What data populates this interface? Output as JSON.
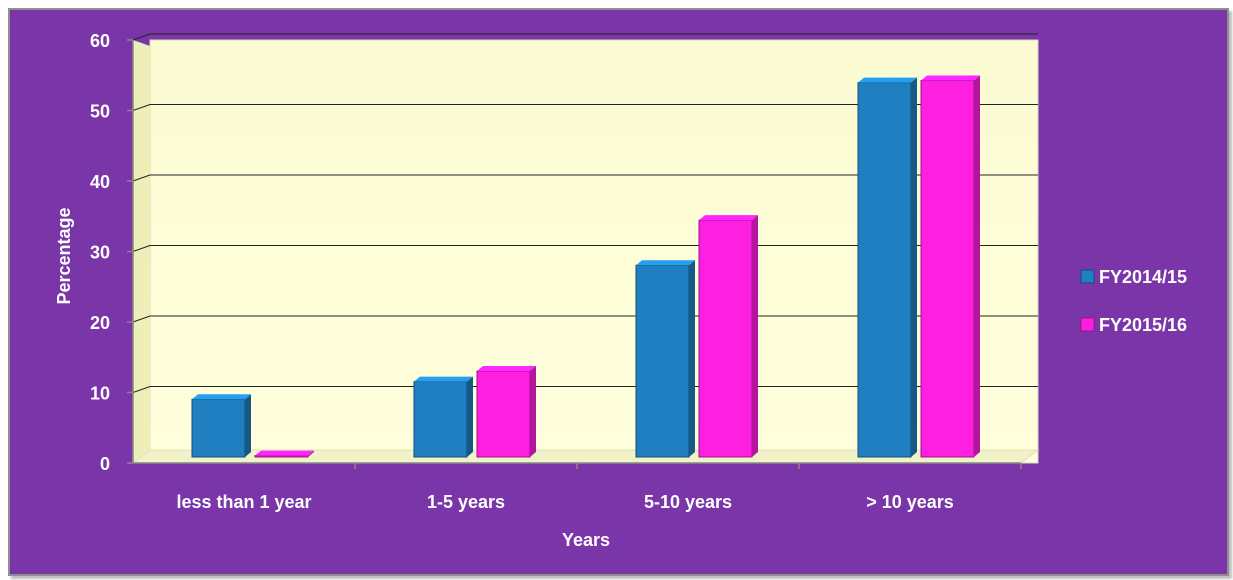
{
  "chart_data": {
    "type": "bar",
    "title": "",
    "xlabel": "Years",
    "ylabel": "Percentage",
    "categories": [
      "less than 1 year",
      "1-5 years",
      "5-10 years",
      "> 10 years"
    ],
    "ylim": [
      0,
      60
    ],
    "yticks": [
      "0",
      "10",
      "20",
      "30",
      "40",
      "50",
      "60"
    ],
    "grid": true,
    "legend_position": "right",
    "series": [
      {
        "name": "FY2014/15",
        "color": "#1f7fc0",
        "values": [
          8.2,
          10.7,
          27.2,
          53.1
        ]
      },
      {
        "name": "FY2015/16",
        "color": "#ff1fe0",
        "values": [
          0.2,
          12.2,
          33.6,
          53.4
        ]
      }
    ],
    "colors": {
      "frame_background": "#7a36a8",
      "plot_background": "#ffffd0",
      "gridline": "#222222"
    }
  }
}
